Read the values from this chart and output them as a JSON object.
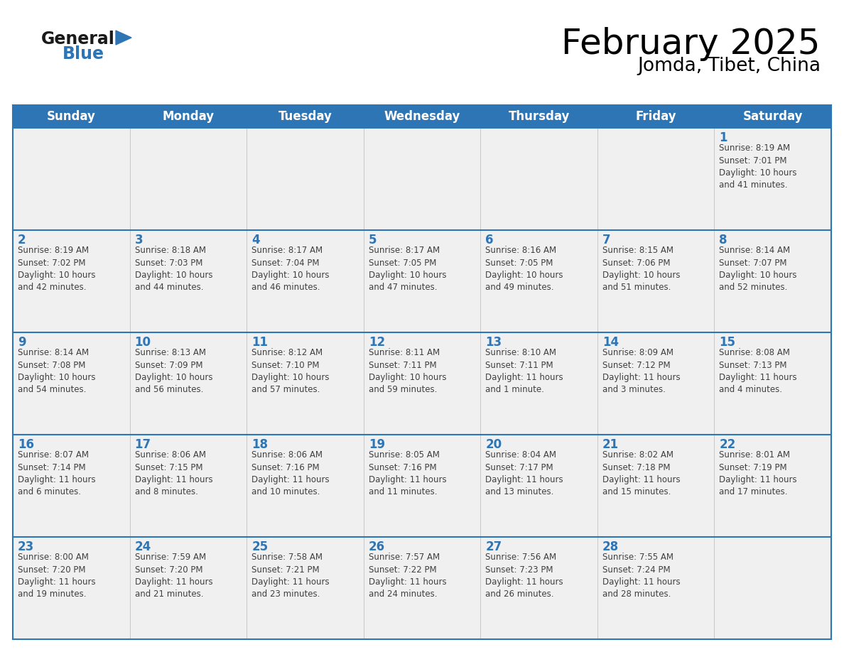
{
  "title": "February 2025",
  "subtitle": "Jomda, Tibet, China",
  "header_bg": "#2E75B6",
  "header_text_color": "#FFFFFF",
  "day_names": [
    "Sunday",
    "Monday",
    "Tuesday",
    "Wednesday",
    "Thursday",
    "Friday",
    "Saturday"
  ],
  "row_bg": "#F0F0F0",
  "date_color": "#2E75B6",
  "info_color": "#404040",
  "border_color": "#2E75B6",
  "logo_general_color": "#1a1a1a",
  "logo_blue_color": "#2E75B6",
  "logo_triangle_color": "#2E75B6",
  "calendar_data": [
    [
      {
        "day": null,
        "info": ""
      },
      {
        "day": null,
        "info": ""
      },
      {
        "day": null,
        "info": ""
      },
      {
        "day": null,
        "info": ""
      },
      {
        "day": null,
        "info": ""
      },
      {
        "day": null,
        "info": ""
      },
      {
        "day": 1,
        "info": "Sunrise: 8:19 AM\nSunset: 7:01 PM\nDaylight: 10 hours\nand 41 minutes."
      }
    ],
    [
      {
        "day": 2,
        "info": "Sunrise: 8:19 AM\nSunset: 7:02 PM\nDaylight: 10 hours\nand 42 minutes."
      },
      {
        "day": 3,
        "info": "Sunrise: 8:18 AM\nSunset: 7:03 PM\nDaylight: 10 hours\nand 44 minutes."
      },
      {
        "day": 4,
        "info": "Sunrise: 8:17 AM\nSunset: 7:04 PM\nDaylight: 10 hours\nand 46 minutes."
      },
      {
        "day": 5,
        "info": "Sunrise: 8:17 AM\nSunset: 7:05 PM\nDaylight: 10 hours\nand 47 minutes."
      },
      {
        "day": 6,
        "info": "Sunrise: 8:16 AM\nSunset: 7:05 PM\nDaylight: 10 hours\nand 49 minutes."
      },
      {
        "day": 7,
        "info": "Sunrise: 8:15 AM\nSunset: 7:06 PM\nDaylight: 10 hours\nand 51 minutes."
      },
      {
        "day": 8,
        "info": "Sunrise: 8:14 AM\nSunset: 7:07 PM\nDaylight: 10 hours\nand 52 minutes."
      }
    ],
    [
      {
        "day": 9,
        "info": "Sunrise: 8:14 AM\nSunset: 7:08 PM\nDaylight: 10 hours\nand 54 minutes."
      },
      {
        "day": 10,
        "info": "Sunrise: 8:13 AM\nSunset: 7:09 PM\nDaylight: 10 hours\nand 56 minutes."
      },
      {
        "day": 11,
        "info": "Sunrise: 8:12 AM\nSunset: 7:10 PM\nDaylight: 10 hours\nand 57 minutes."
      },
      {
        "day": 12,
        "info": "Sunrise: 8:11 AM\nSunset: 7:11 PM\nDaylight: 10 hours\nand 59 minutes."
      },
      {
        "day": 13,
        "info": "Sunrise: 8:10 AM\nSunset: 7:11 PM\nDaylight: 11 hours\nand 1 minute."
      },
      {
        "day": 14,
        "info": "Sunrise: 8:09 AM\nSunset: 7:12 PM\nDaylight: 11 hours\nand 3 minutes."
      },
      {
        "day": 15,
        "info": "Sunrise: 8:08 AM\nSunset: 7:13 PM\nDaylight: 11 hours\nand 4 minutes."
      }
    ],
    [
      {
        "day": 16,
        "info": "Sunrise: 8:07 AM\nSunset: 7:14 PM\nDaylight: 11 hours\nand 6 minutes."
      },
      {
        "day": 17,
        "info": "Sunrise: 8:06 AM\nSunset: 7:15 PM\nDaylight: 11 hours\nand 8 minutes."
      },
      {
        "day": 18,
        "info": "Sunrise: 8:06 AM\nSunset: 7:16 PM\nDaylight: 11 hours\nand 10 minutes."
      },
      {
        "day": 19,
        "info": "Sunrise: 8:05 AM\nSunset: 7:16 PM\nDaylight: 11 hours\nand 11 minutes."
      },
      {
        "day": 20,
        "info": "Sunrise: 8:04 AM\nSunset: 7:17 PM\nDaylight: 11 hours\nand 13 minutes."
      },
      {
        "day": 21,
        "info": "Sunrise: 8:02 AM\nSunset: 7:18 PM\nDaylight: 11 hours\nand 15 minutes."
      },
      {
        "day": 22,
        "info": "Sunrise: 8:01 AM\nSunset: 7:19 PM\nDaylight: 11 hours\nand 17 minutes."
      }
    ],
    [
      {
        "day": 23,
        "info": "Sunrise: 8:00 AM\nSunset: 7:20 PM\nDaylight: 11 hours\nand 19 minutes."
      },
      {
        "day": 24,
        "info": "Sunrise: 7:59 AM\nSunset: 7:20 PM\nDaylight: 11 hours\nand 21 minutes."
      },
      {
        "day": 25,
        "info": "Sunrise: 7:58 AM\nSunset: 7:21 PM\nDaylight: 11 hours\nand 23 minutes."
      },
      {
        "day": 26,
        "info": "Sunrise: 7:57 AM\nSunset: 7:22 PM\nDaylight: 11 hours\nand 24 minutes."
      },
      {
        "day": 27,
        "info": "Sunrise: 7:56 AM\nSunset: 7:23 PM\nDaylight: 11 hours\nand 26 minutes."
      },
      {
        "day": 28,
        "info": "Sunrise: 7:55 AM\nSunset: 7:24 PM\nDaylight: 11 hours\nand 28 minutes."
      },
      {
        "day": null,
        "info": ""
      }
    ]
  ]
}
